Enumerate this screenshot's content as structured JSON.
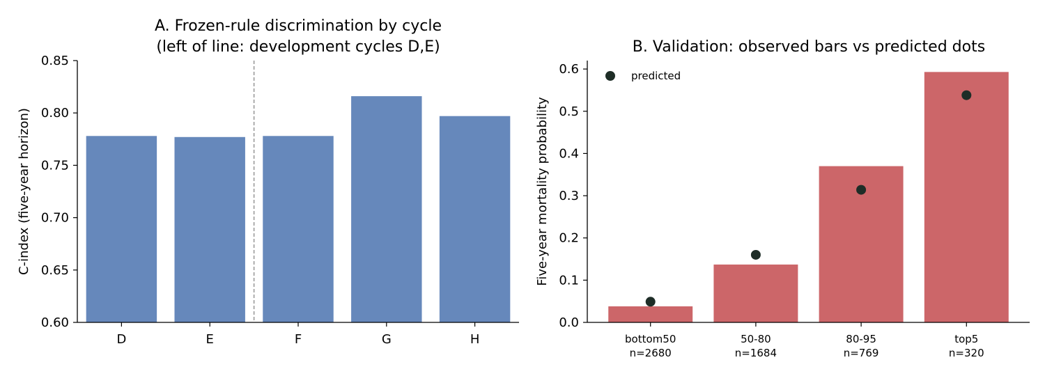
{
  "colors": {
    "blue_bar": "#6688bb",
    "red_bar": "#cc6669",
    "dot": "#1e2d27",
    "axis": "#000000",
    "divider": "#888888"
  },
  "chart_data": [
    {
      "type": "bar",
      "title_line1": "A. Frozen-rule discrimination by cycle",
      "title_line2": "(left of line: development cycles D,E)",
      "xlabel": "",
      "ylabel": "C-index (five-year horizon)",
      "categories": [
        "D",
        "E",
        "F",
        "G",
        "H"
      ],
      "values": [
        0.778,
        0.777,
        0.778,
        0.816,
        0.797
      ],
      "ylim": [
        0.6,
        0.85
      ],
      "yticks": [
        "0.60",
        "0.65",
        "0.70",
        "0.75",
        "0.80",
        "0.85"
      ],
      "divider_between": [
        "E",
        "F"
      ],
      "grid": false
    },
    {
      "type": "bar",
      "title": "B. Validation: observed bars vs predicted dots",
      "xlabel": "",
      "ylabel": "Five-year mortality probability",
      "categories": [
        "bottom50",
        "50-80",
        "80-95",
        "top5"
      ],
      "category_counts": [
        "n=2680",
        "n=1684",
        "n=769",
        "n=320"
      ],
      "observed": [
        0.038,
        0.137,
        0.37,
        0.593
      ],
      "predicted": [
        0.049,
        0.16,
        0.314,
        0.538
      ],
      "ylim": [
        0.0,
        0.62
      ],
      "yticks": [
        "0.0",
        "0.1",
        "0.2",
        "0.3",
        "0.4",
        "0.5",
        "0.6"
      ],
      "legend": {
        "label": "predicted",
        "placement": "top-left"
      },
      "grid": false
    }
  ]
}
